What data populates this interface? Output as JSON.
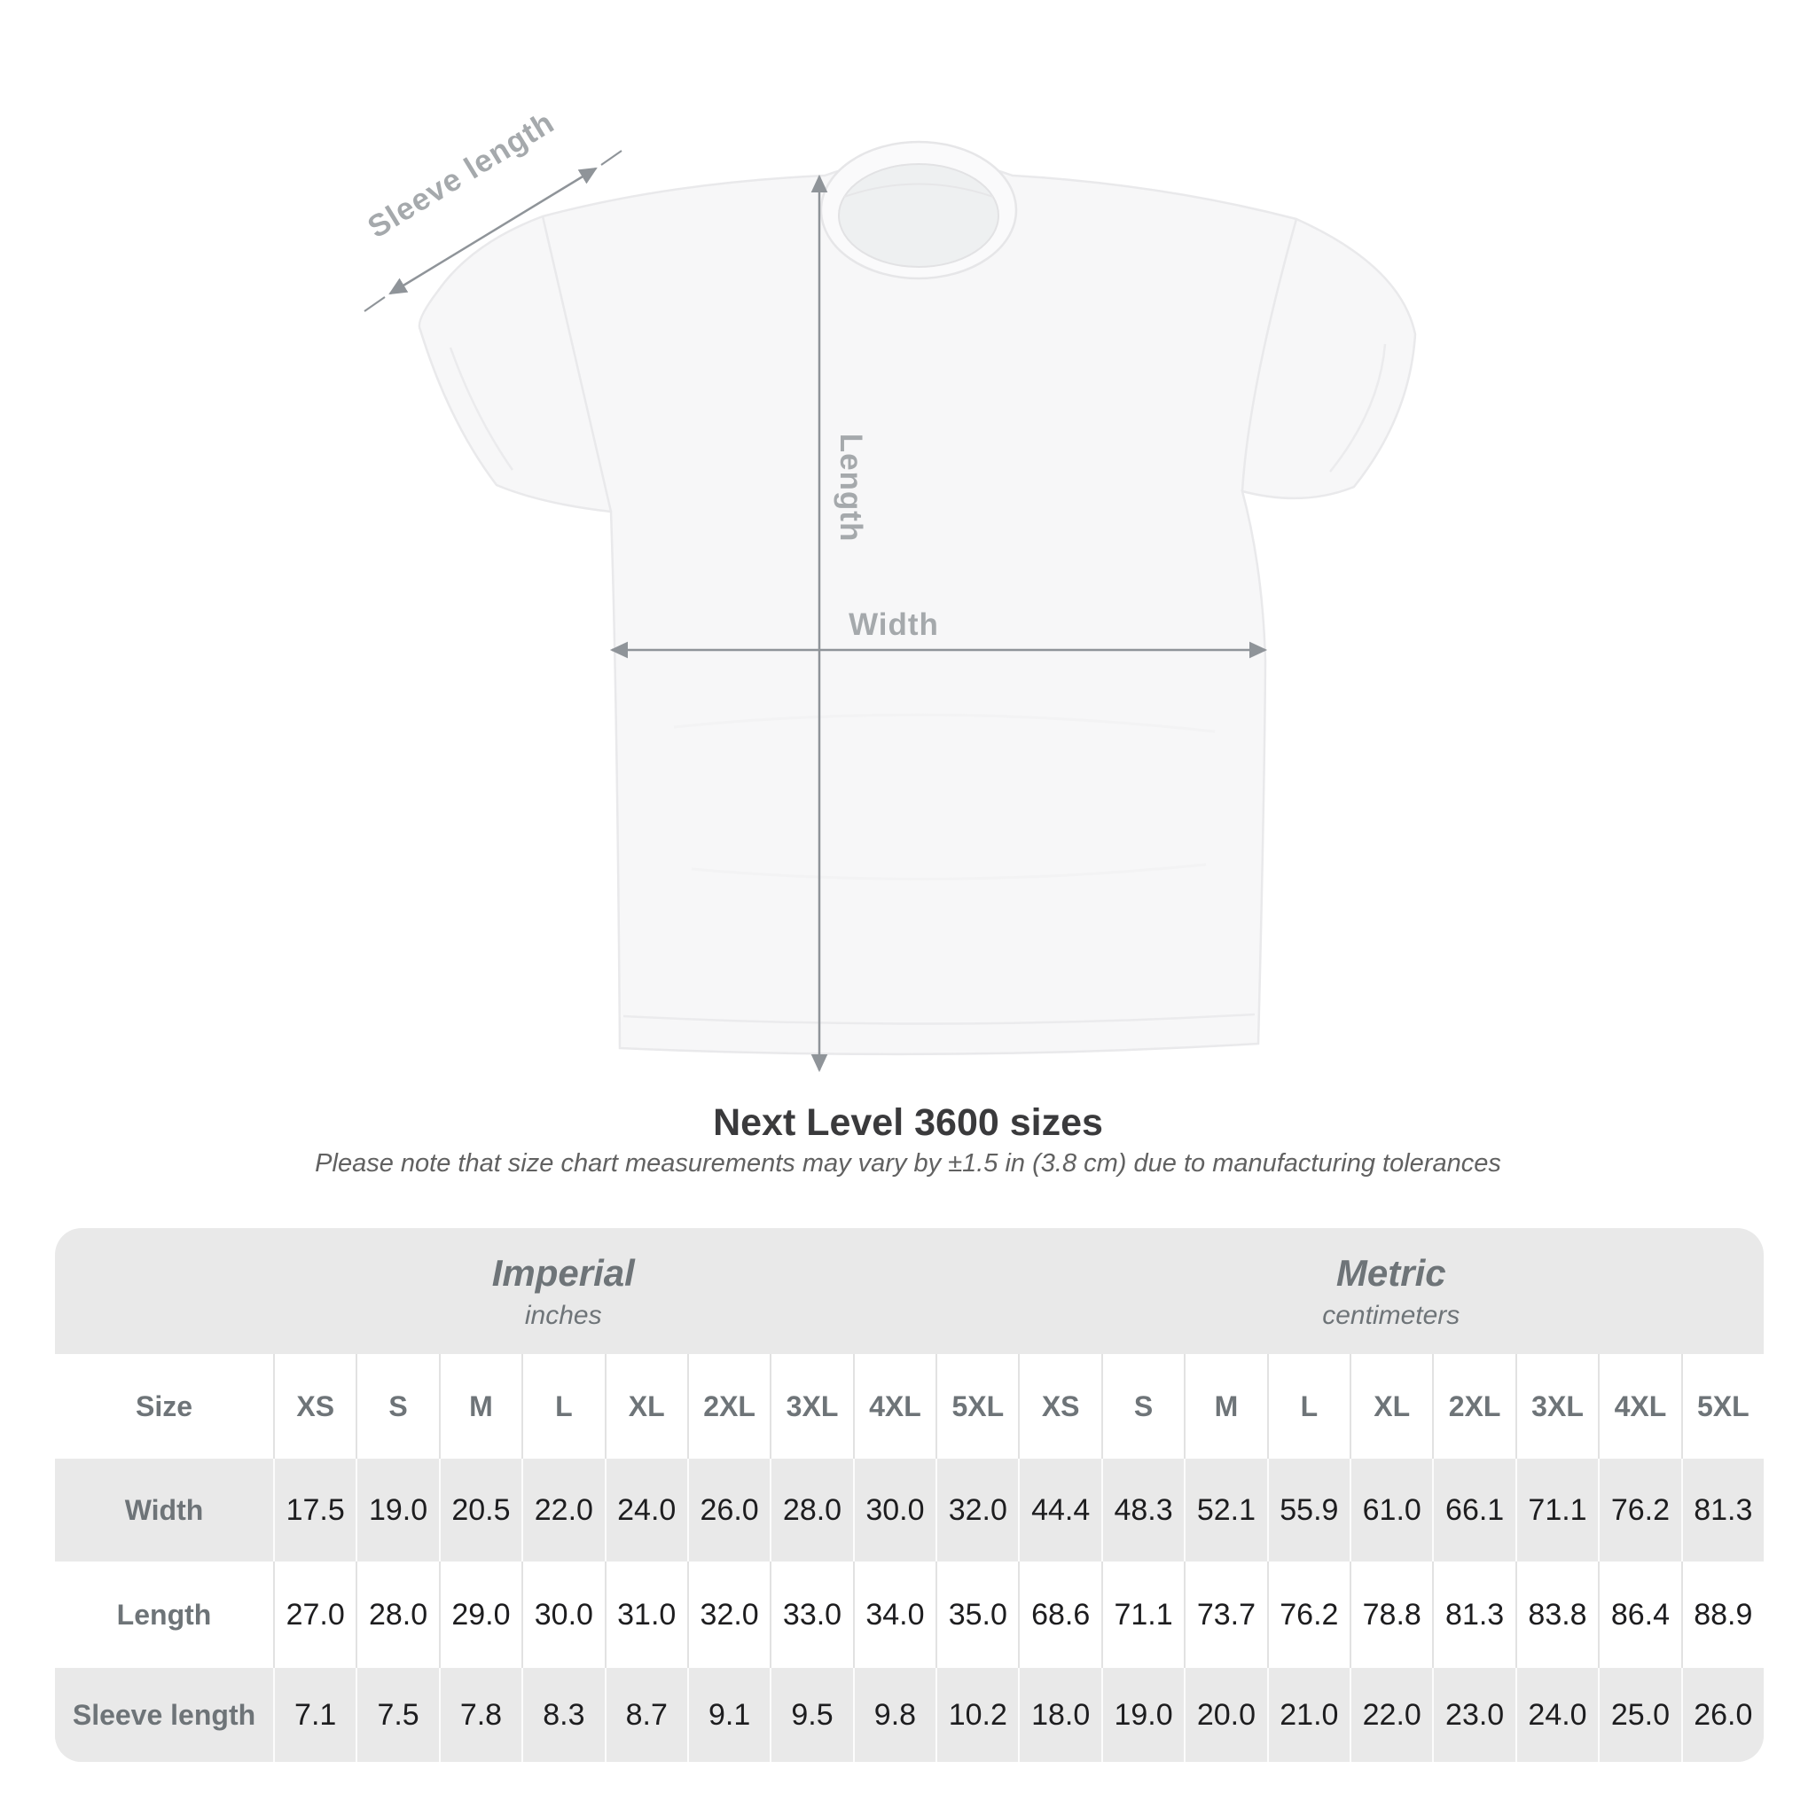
{
  "title": "Next Level 3600 sizes",
  "subtitle": "Please note that size chart measurements may vary by ±1.5 in (3.8 cm) due to manufacturing tolerances",
  "diagram": {
    "labels": {
      "sleeve_length": "Sleeve length",
      "length": "Length",
      "width": "Width"
    },
    "line_color": "#8f9499",
    "label_color": "#a5a9ac",
    "shirt_fill": "#f7f7f8",
    "shirt_seam": "#e9e9eb"
  },
  "table": {
    "imperial": {
      "name": "Imperial",
      "unit": "inches"
    },
    "metric": {
      "name": "Metric",
      "unit": "centimeters"
    },
    "size_col_header": "Size",
    "sizes": [
      "XS",
      "S",
      "M",
      "L",
      "XL",
      "2XL",
      "3XL",
      "4XL",
      "5XL"
    ],
    "rows": [
      {
        "label": "Width",
        "imperial": [
          "17.5",
          "19.0",
          "20.5",
          "22.0",
          "24.0",
          "26.0",
          "28.0",
          "30.0",
          "32.0"
        ],
        "metric": [
          "44.4",
          "48.3",
          "52.1",
          "55.9",
          "61.0",
          "66.1",
          "71.1",
          "76.2",
          "81.3"
        ]
      },
      {
        "label": "Length",
        "imperial": [
          "27.0",
          "28.0",
          "29.0",
          "30.0",
          "31.0",
          "32.0",
          "33.0",
          "34.0",
          "35.0"
        ],
        "metric": [
          "68.6",
          "71.1",
          "73.7",
          "76.2",
          "78.8",
          "81.3",
          "83.8",
          "86.4",
          "88.9"
        ]
      },
      {
        "label": "Sleeve length",
        "imperial": [
          "7.1",
          "7.5",
          "7.8",
          "8.3",
          "8.7",
          "9.1",
          "9.5",
          "9.8",
          "10.2"
        ],
        "metric": [
          "18.0",
          "19.0",
          "20.0",
          "21.0",
          "22.0",
          "23.0",
          "24.0",
          "25.0",
          "26.0"
        ]
      }
    ]
  },
  "chart_data": {
    "type": "table",
    "title": "Next Level 3600 sizes",
    "unit_groups": [
      "Imperial (inches)",
      "Metric (centimeters)"
    ],
    "columns": [
      "XS",
      "S",
      "M",
      "L",
      "XL",
      "2XL",
      "3XL",
      "4XL",
      "5XL"
    ],
    "rows": [
      {
        "measure": "Width",
        "imperial_inches": [
          17.5,
          19.0,
          20.5,
          22.0,
          24.0,
          26.0,
          28.0,
          30.0,
          32.0
        ],
        "metric_cm": [
          44.4,
          48.3,
          52.1,
          55.9,
          61.0,
          66.1,
          71.1,
          76.2,
          81.3
        ]
      },
      {
        "measure": "Length",
        "imperial_inches": [
          27.0,
          28.0,
          29.0,
          30.0,
          31.0,
          32.0,
          33.0,
          34.0,
          35.0
        ],
        "metric_cm": [
          68.6,
          71.1,
          73.7,
          76.2,
          78.8,
          81.3,
          83.8,
          86.4,
          88.9
        ]
      },
      {
        "measure": "Sleeve length",
        "imperial_inches": [
          7.1,
          7.5,
          7.8,
          8.3,
          8.7,
          9.1,
          9.5,
          9.8,
          10.2
        ],
        "metric_cm": [
          18.0,
          19.0,
          20.0,
          21.0,
          22.0,
          23.0,
          24.0,
          25.0,
          26.0
        ]
      }
    ]
  }
}
